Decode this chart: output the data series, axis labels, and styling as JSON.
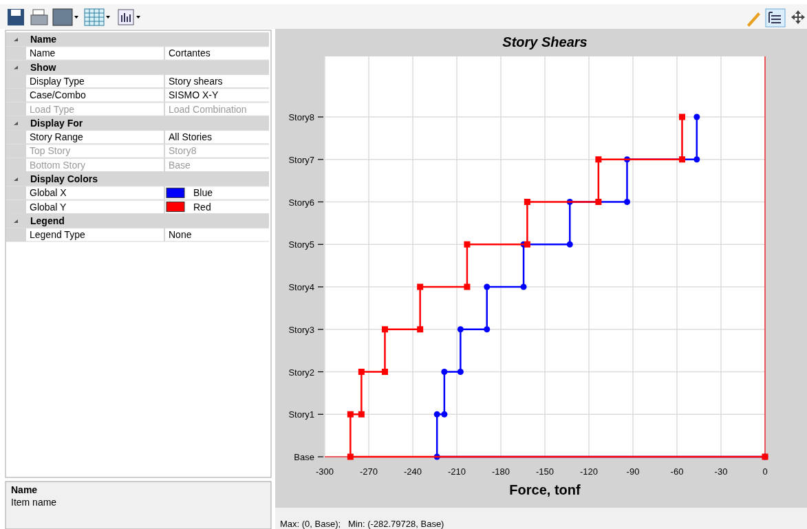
{
  "chart_data": [
    {
      "type": "other",
      "colors": [
        "#0000ff",
        "#ff0000"
      ],
      "annotations": [
        "Name",
        "Name",
        "Cortantes",
        "Show",
        "Display Type",
        "Story shears",
        "Case/Combo",
        "SISMO X-Y",
        "Load Type",
        "Load Combination",
        "Display For",
        "Story Range",
        "All Stories",
        "Top Story",
        "Story8",
        "Bottom Story",
        "Base",
        "Display Colors",
        "Global X",
        "Blue",
        "Global Y",
        "Red",
        "Legend",
        "Legend Type",
        "None",
        "Name",
        "Item name"
      ]
    },
    {
      "type": "step",
      "orientation": "horizontal",
      "title": "Story Shears",
      "xlabel": "Force, tonf",
      "xlim": [
        -300,
        0
      ],
      "xticks": [
        -300,
        -270,
        -240,
        -210,
        -180,
        -150,
        -120,
        -90,
        -60,
        -30,
        0
      ],
      "categories": [
        "Story8",
        "Story7",
        "Story6",
        "Story5",
        "Story4",
        "Story3",
        "Story2",
        "Story1",
        "Base"
      ],
      "grid": true,
      "line_style": "solid",
      "annotations": [
        "Max: (0, Base);   Min: (-282.79728, Base)"
      ],
      "series": [
        {
          "color": "#0000ff",
          "marker": "circle",
          "values": [
            -46.5,
            -94,
            -133,
            -164.5,
            -189.5,
            -207.5,
            -218.5,
            -223.5,
            0
          ]
        },
        {
          "type": "scatter",
          "color": "#0000ff",
          "marker": "circle",
          "values": [
            null,
            -46.5,
            -94,
            -133,
            -164.5,
            -189.5,
            -207.5,
            -218.5,
            -223.5
          ]
        },
        {
          "color": "#ff0000",
          "marker": "square",
          "values": [
            -56.5,
            -113.5,
            -162,
            -203,
            -235,
            -259,
            -275,
            -282.5,
            0
          ]
        },
        {
          "type": "scatter",
          "color": "#ff0000",
          "marker": "square",
          "values": [
            null,
            -56.5,
            -113.5,
            -162,
            -203,
            -235,
            -259,
            -275,
            -282.5
          ]
        }
      ]
    }
  ]
}
